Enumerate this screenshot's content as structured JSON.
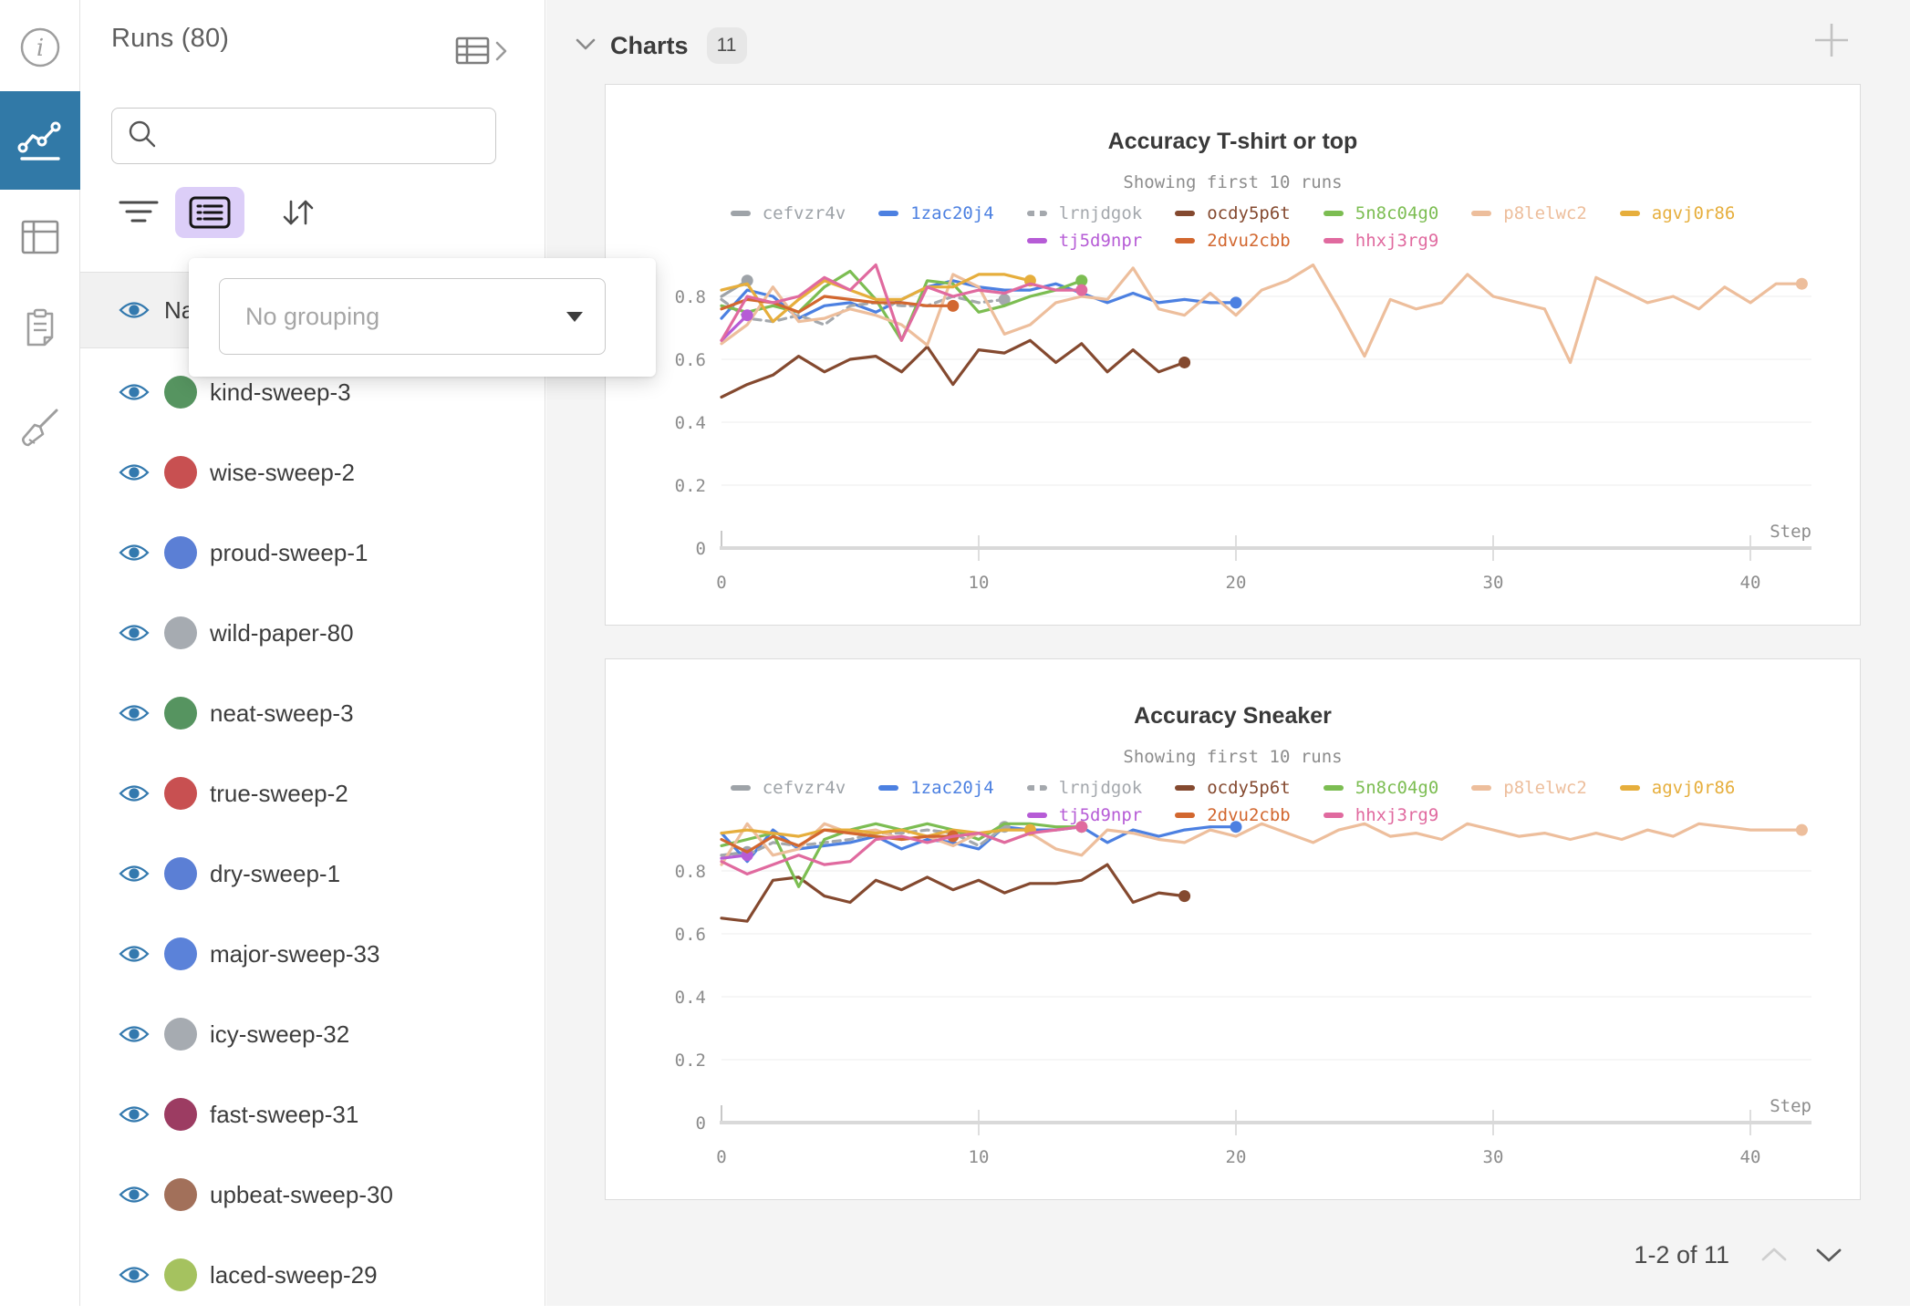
{
  "left_rail": {
    "icons": [
      {
        "name": "info",
        "active": false
      },
      {
        "name": "workspace-charts",
        "active": true
      },
      {
        "name": "runs-table",
        "active": false
      },
      {
        "name": "logs-clipboard",
        "active": false
      },
      {
        "name": "sweeps-broom",
        "active": false
      }
    ],
    "active_bg": "#3179A7"
  },
  "runs_panel": {
    "title": "Runs (80)",
    "search": {
      "value": "",
      "placeholder": ""
    },
    "toolbar": {
      "filter": "filter",
      "group": "group",
      "sort": "sort"
    },
    "grouping_popup": {
      "select_value": "No grouping"
    },
    "header_row": {
      "label": "Name"
    },
    "runs": [
      {
        "name": "kind-sweep-3",
        "color": "#569460"
      },
      {
        "name": "wise-sweep-2",
        "color": "#C85051"
      },
      {
        "name": "proud-sweep-1",
        "color": "#5B7FD5"
      },
      {
        "name": "wild-paper-80",
        "color": "#A6ABB1"
      },
      {
        "name": "neat-sweep-3",
        "color": "#569460"
      },
      {
        "name": "true-sweep-2",
        "color": "#C85051"
      },
      {
        "name": "dry-sweep-1",
        "color": "#5B7FD5"
      },
      {
        "name": "major-sweep-33",
        "color": "#5B82D9"
      },
      {
        "name": "icy-sweep-32",
        "color": "#A6ABB1"
      },
      {
        "name": "fast-sweep-31",
        "color": "#9C3C62"
      },
      {
        "name": "upbeat-sweep-30",
        "color": "#A2705A"
      },
      {
        "name": "laced-sweep-29",
        "color": "#A5C25F"
      }
    ],
    "eye_color": "#3379AE"
  },
  "main": {
    "section_title": "Charts",
    "section_badge": "11",
    "pagination": {
      "label": "1-2 of 11"
    }
  },
  "chart_data": [
    {
      "type": "line",
      "title": "Accuracy T-shirt or top",
      "subtitle": "Showing first 10 runs",
      "xlabel": "Step",
      "xlim": [
        0,
        42.5
      ],
      "ylim": [
        0,
        1.07
      ],
      "yticks": [
        0,
        0.2,
        0.4,
        0.6,
        0.8
      ],
      "xticks": [
        0,
        10,
        20,
        30,
        40
      ],
      "grid": true,
      "legend_position": "top",
      "series": [
        {
          "name": "cefvzr4v",
          "color": "#9EA3A8",
          "dashed": false,
          "values": [
            0.8,
            0.85
          ]
        },
        {
          "name": "1zac20j4",
          "color": "#4C80E1",
          "dashed": false,
          "values": [
            0.73,
            0.82,
            0.8,
            0.73,
            0.77,
            0.78,
            0.75,
            0.79,
            0.83,
            0.85,
            0.83,
            0.82,
            0.82,
            0.84,
            0.81,
            0.78,
            0.81,
            0.78,
            0.79,
            0.78,
            0.78
          ]
        },
        {
          "name": "lrnjdgok",
          "color": "#A4A8AD",
          "dashed": true,
          "values": [
            0.79,
            0.73,
            0.72,
            0.74,
            0.71,
            0.77,
            0.78,
            0.77,
            0.77,
            0.8,
            0.78,
            0.79
          ]
        },
        {
          "name": "ocdy5p6t",
          "color": "#84492F",
          "dashed": false,
          "values": [
            0.48,
            0.52,
            0.55,
            0.61,
            0.56,
            0.6,
            0.61,
            0.56,
            0.64,
            0.52,
            0.63,
            0.62,
            0.66,
            0.59,
            0.65,
            0.56,
            0.63,
            0.56,
            0.59
          ]
        },
        {
          "name": "5n8c04g0",
          "color": "#7CBD52",
          "dashed": false,
          "values": [
            0.77,
            0.75,
            0.77,
            0.75,
            0.83,
            0.88,
            0.79,
            0.66,
            0.85,
            0.84,
            0.75,
            0.77,
            0.8,
            0.82,
            0.85
          ]
        },
        {
          "name": "p8lelwc2",
          "color": "#EDBE9C",
          "dashed": false,
          "values": [
            0.65,
            0.71,
            0.83,
            0.72,
            0.73,
            0.76,
            0.74,
            0.71,
            0.645,
            0.87,
            0.83,
            0.68,
            0.71,
            0.78,
            0.8,
            0.79,
            0.89,
            0.76,
            0.74,
            0.81,
            0.74,
            0.82,
            0.85,
            0.9,
            0.76,
            0.61,
            0.79,
            0.76,
            0.78,
            0.87,
            0.8,
            0.78,
            0.76,
            0.59,
            0.86,
            0.82,
            0.78,
            0.8,
            0.76,
            0.83,
            0.78,
            0.84,
            0.84
          ]
        },
        {
          "name": "agvj0r86",
          "color": "#E6AE3C",
          "dashed": false,
          "values": [
            0.82,
            0.84,
            0.72,
            0.79,
            0.85,
            0.82,
            0.79,
            0.79,
            0.83,
            0.83,
            0.87,
            0.87,
            0.85
          ]
        },
        {
          "name": "tj5d9npr",
          "color": "#B65CD6",
          "dashed": false,
          "values": [
            0.66,
            0.74
          ]
        },
        {
          "name": "2dvu2cbb",
          "color": "#D2672F",
          "dashed": false,
          "values": [
            0.76,
            0.79,
            0.78,
            0.75,
            0.8,
            0.79,
            0.78,
            0.78,
            0.77,
            0.77
          ]
        },
        {
          "name": "hhxj3rg9",
          "color": "#E06A9F",
          "dashed": false,
          "values": [
            0.66,
            0.8,
            0.78,
            0.8,
            0.86,
            0.82,
            0.9,
            0.66,
            0.83,
            0.8,
            0.82,
            0.81,
            0.84,
            0.82,
            0.82
          ]
        }
      ]
    },
    {
      "type": "line",
      "title": "Accuracy Sneaker",
      "subtitle": "Showing first 10 runs",
      "xlabel": "Step",
      "xlim": [
        0,
        42.5
      ],
      "ylim": [
        0,
        1.07
      ],
      "yticks": [
        0,
        0.2,
        0.4,
        0.6,
        0.8
      ],
      "xticks": [
        0,
        10,
        20,
        30,
        40
      ],
      "grid": true,
      "legend_position": "top",
      "series": [
        {
          "name": "cefvzr4v",
          "color": "#9EA3A8",
          "dashed": false,
          "values": [
            0.85,
            0.86
          ]
        },
        {
          "name": "1zac20j4",
          "color": "#4C80E1",
          "dashed": false,
          "values": [
            0.92,
            0.83,
            0.93,
            0.87,
            0.88,
            0.89,
            0.91,
            0.87,
            0.9,
            0.89,
            0.87,
            0.94,
            0.93,
            0.93,
            0.94,
            0.89,
            0.93,
            0.91,
            0.93,
            0.94,
            0.94
          ]
        },
        {
          "name": "lrnjdgok",
          "color": "#A4A8AD",
          "dashed": true,
          "values": [
            0.85,
            0.85,
            0.89,
            0.88,
            0.89,
            0.9,
            0.92,
            0.92,
            0.93,
            0.92,
            0.88,
            0.94
          ]
        },
        {
          "name": "ocdy5p6t",
          "color": "#84492F",
          "dashed": false,
          "values": [
            0.65,
            0.64,
            0.77,
            0.78,
            0.72,
            0.7,
            0.77,
            0.74,
            0.78,
            0.74,
            0.77,
            0.73,
            0.76,
            0.76,
            0.77,
            0.82,
            0.7,
            0.73,
            0.72
          ]
        },
        {
          "name": "5n8c04g0",
          "color": "#7CBD52",
          "dashed": false,
          "values": [
            0.88,
            0.9,
            0.92,
            0.75,
            0.9,
            0.93,
            0.95,
            0.93,
            0.95,
            0.93,
            0.9,
            0.95,
            0.95,
            0.94,
            0.94
          ]
        },
        {
          "name": "p8lelwc2",
          "color": "#EDBE9C",
          "dashed": false,
          "values": [
            0.82,
            0.95,
            0.85,
            0.87,
            0.95,
            0.92,
            0.93,
            0.9,
            0.91,
            0.88,
            0.92,
            0.89,
            0.92,
            0.87,
            0.85,
            0.93,
            0.92,
            0.9,
            0.89,
            0.93,
            0.91,
            0.95,
            0.92,
            0.89,
            0.93,
            0.95,
            0.91,
            0.92,
            0.9,
            0.95,
            0.93,
            0.91,
            0.92,
            0.9,
            0.92,
            0.9,
            0.93,
            0.91,
            0.95,
            0.94,
            0.93,
            0.93,
            0.93
          ]
        },
        {
          "name": "agvj0r86",
          "color": "#E6AE3C",
          "dashed": false,
          "values": [
            0.92,
            0.93,
            0.92,
            0.91,
            0.93,
            0.93,
            0.92,
            0.93,
            0.91,
            0.93,
            0.92,
            0.93,
            0.93
          ]
        },
        {
          "name": "tj5d9npr",
          "color": "#B65CD6",
          "dashed": false,
          "values": [
            0.84,
            0.85
          ]
        },
        {
          "name": "2dvu2cbb",
          "color": "#D2672F",
          "dashed": false,
          "values": [
            0.9,
            0.86,
            0.91,
            0.88,
            0.93,
            0.92,
            0.91,
            0.9,
            0.91,
            0.91
          ]
        },
        {
          "name": "hhxj3rg9",
          "color": "#E06A9F",
          "dashed": false,
          "values": [
            0.83,
            0.79,
            0.82,
            0.85,
            0.82,
            0.83,
            0.9,
            0.91,
            0.89,
            0.91,
            0.92,
            0.89,
            0.92,
            0.93,
            0.94
          ]
        }
      ]
    }
  ]
}
